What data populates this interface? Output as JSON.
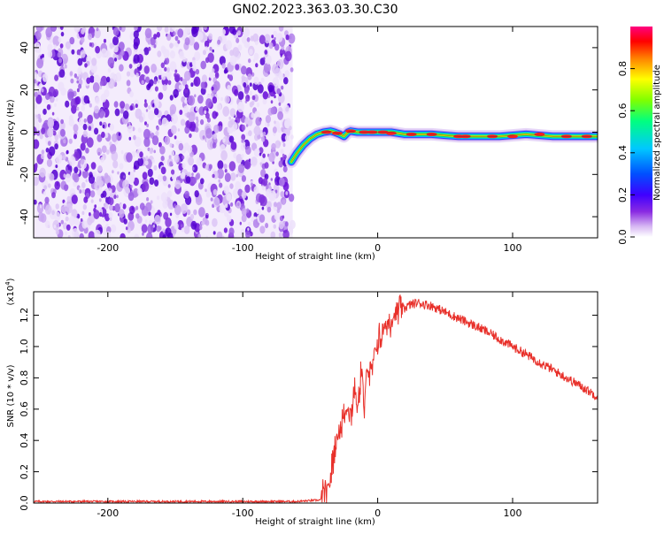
{
  "title": "GN02.2023.363.03.30.C30",
  "chart_data": [
    {
      "type": "heatmap",
      "name": "spectrogram",
      "xlabel": "Height of straight line (km)",
      "ylabel": "Frequency (Hz)",
      "xlim": [
        -255,
        163
      ],
      "ylim": [
        -50,
        50
      ],
      "xticks": [
        -200,
        -100,
        0,
        100
      ],
      "yticks": [
        -40,
        -20,
        0,
        20,
        40
      ],
      "noise_region_x": [
        -255,
        -63
      ],
      "ridge": [
        [
          -64,
          -14
        ],
        [
          -60,
          -10
        ],
        [
          -55,
          -6
        ],
        [
          -50,
          -3
        ],
        [
          -45,
          -1
        ],
        [
          -40,
          0
        ],
        [
          -35,
          0.5
        ],
        [
          -32,
          0
        ],
        [
          -28,
          -1
        ],
        [
          -25,
          -2
        ],
        [
          -22,
          0
        ],
        [
          -20,
          0.5
        ],
        [
          -15,
          0
        ],
        [
          -10,
          0
        ],
        [
          0,
          0
        ],
        [
          10,
          0
        ],
        [
          20,
          -1
        ],
        [
          40,
          -1
        ],
        [
          60,
          -2
        ],
        [
          78,
          -2
        ],
        [
          90,
          -2
        ],
        [
          110,
          -1
        ],
        [
          130,
          -2
        ],
        [
          163,
          -2
        ]
      ],
      "colorbar": {
        "label": "Normalized spectral amplitude",
        "ticks": [
          "0.0",
          "0.2",
          "0.4",
          "0.6",
          "0.8"
        ],
        "range": [
          0,
          1
        ],
        "colors": [
          "#ffffff",
          "#d7b8f3",
          "#8a2be2",
          "#3f00ff",
          "#0050ff",
          "#00c8ff",
          "#00ff80",
          "#80ff00",
          "#ffff00",
          "#ff8000",
          "#ff0000",
          "#ff0080"
        ]
      }
    },
    {
      "type": "line",
      "name": "snr",
      "xlabel": "Height of straight line (km)",
      "ylabel": "SNR (10 * v/v)",
      "multiplier": "(x10",
      "multiplier_exp": "4",
      "multiplier_close": ")",
      "xlim": [
        -255,
        163
      ],
      "ylim": [
        0,
        1.35
      ],
      "xticks": [
        -200,
        -100,
        0,
        100
      ],
      "yticks": [
        "0.0",
        "0.2",
        "0.4",
        "0.6",
        "0.8",
        "1.0",
        "1.2"
      ],
      "series": [
        {
          "color": "#e8302a",
          "x": [
            -255,
            -200,
            -150,
            -100,
            -60,
            -42,
            -38,
            -35,
            -32,
            -28,
            -25,
            -22,
            -20,
            -17,
            -15,
            -12,
            -10,
            -8,
            -5,
            -2,
            0,
            5,
            10,
            15,
            20,
            25,
            30,
            35,
            40,
            45,
            50,
            60,
            70,
            80,
            90,
            100,
            110,
            120,
            130,
            140,
            150,
            163
          ],
          "y": [
            0.01,
            0.01,
            0.01,
            0.01,
            0.01,
            0.02,
            0.06,
            0.15,
            0.35,
            0.48,
            0.55,
            0.62,
            0.55,
            0.75,
            0.58,
            0.88,
            0.55,
            0.9,
            0.78,
            0.98,
            1.02,
            1.12,
            1.18,
            1.22,
            1.25,
            1.27,
            1.28,
            1.27,
            1.26,
            1.24,
            1.22,
            1.18,
            1.14,
            1.1,
            1.05,
            1.0,
            0.95,
            0.9,
            0.85,
            0.8,
            0.75,
            0.68
          ]
        }
      ]
    }
  ]
}
